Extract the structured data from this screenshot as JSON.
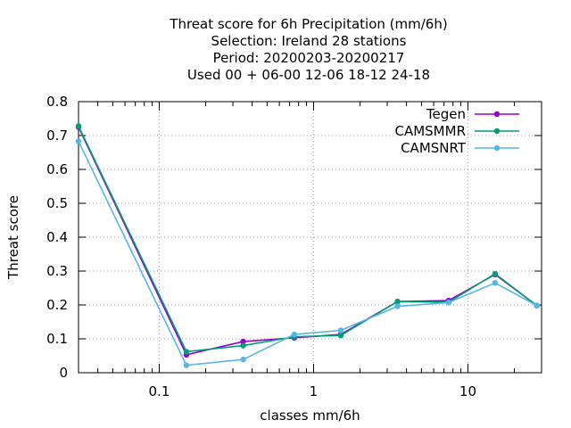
{
  "chart_data": {
    "type": "line",
    "title_lines": [
      "Threat score  for 6h Precipitation (mm/6h)",
      "Selection: Ireland      28 stations",
      "Period: 20200203-20200217",
      "Used  00 + 06-00 12-06 18-12 24-18"
    ],
    "xlabel": "classes mm/6h",
    "ylabel": "Threat score",
    "x_scale": "log",
    "xlim": [
      0.03,
      30
    ],
    "ylim": [
      0,
      0.8
    ],
    "x_ticks": [
      {
        "value": 0.1,
        "label": "0.1"
      },
      {
        "value": 1,
        "label": "1"
      },
      {
        "value": 10,
        "label": "10"
      }
    ],
    "y_ticks": [
      {
        "value": 0,
        "label": "0"
      },
      {
        "value": 0.1,
        "label": "0.1"
      },
      {
        "value": 0.2,
        "label": "0.2"
      },
      {
        "value": 0.3,
        "label": "0.3"
      },
      {
        "value": 0.4,
        "label": "0.4"
      },
      {
        "value": 0.5,
        "label": "0.5"
      },
      {
        "value": 0.6,
        "label": "0.6"
      },
      {
        "value": 0.7,
        "label": "0.7"
      },
      {
        "value": 0.8,
        "label": "0.8"
      }
    ],
    "grid": true,
    "legend_position": "top-right",
    "x": [
      0.03,
      0.15,
      0.35,
      0.75,
      1.5,
      3.5,
      7.5,
      15,
      28
    ],
    "series": [
      {
        "name": "Tegen",
        "color": "#9400d3",
        "values": [
          0.725,
          0.053,
          0.092,
          0.103,
          0.113,
          0.21,
          0.213,
          0.29,
          0.198
        ]
      },
      {
        "name": "CAMSMMR",
        "color": "#009e73",
        "values": [
          0.728,
          0.062,
          0.08,
          0.106,
          0.11,
          0.21,
          0.208,
          0.292,
          0.198
        ]
      },
      {
        "name": "CAMSNRT",
        "color": "#56b4e9",
        "values": [
          0.683,
          0.022,
          0.039,
          0.113,
          0.125,
          0.196,
          0.207,
          0.265,
          0.198
        ]
      }
    ]
  }
}
